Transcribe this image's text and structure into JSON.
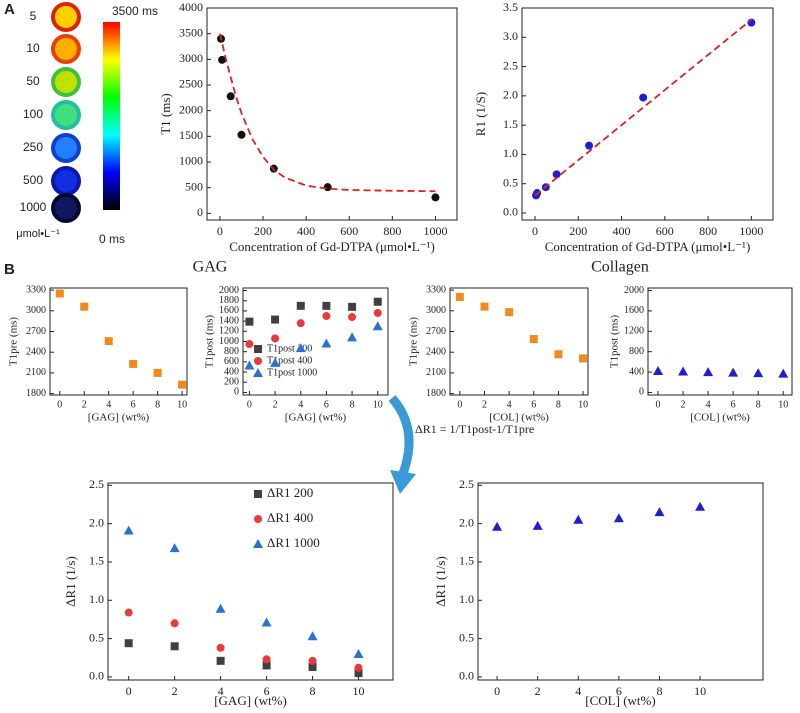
{
  "panel_labels": [
    "A",
    "B"
  ],
  "phantom": {
    "labels": [
      "5",
      "10",
      "50",
      "100",
      "250",
      "500",
      "1000"
    ],
    "unit": "μmol•L⁻¹",
    "colorbar_max": "3500 ms",
    "colorbar_min": "0 ms"
  },
  "group_titles": [
    "GAG",
    "Collagen"
  ],
  "annotation": "ΔR1 = 1/T1post-1/T1pre",
  "chart_data": [
    {
      "type": "scatter",
      "x_label": "Concentration of Gd-DTPA (μmol•L⁻¹)",
      "y_label": "T1 (ms)",
      "xlim": [
        -60,
        1100
      ],
      "ylim": [
        -130,
        4000
      ],
      "xticks": [
        0,
        200,
        400,
        600,
        800,
        1000
      ],
      "yticks": [
        0,
        500,
        1000,
        1500,
        2000,
        2500,
        3000,
        3500,
        4000
      ],
      "series": [
        {
          "color": "#111111",
          "marker": "circle",
          "x": [
            5,
            10,
            50,
            100,
            250,
            500,
            1000
          ],
          "values": [
            3400,
            2990,
            2280,
            1530,
            870,
            510,
            310
          ]
        },
        {
          "color": "#e02020",
          "style": "dashed",
          "x": [
            0,
            25,
            50,
            75,
            100,
            150,
            200,
            250,
            300,
            400,
            500,
            600,
            800,
            1000
          ],
          "values": [
            3500,
            3050,
            2650,
            2270,
            1950,
            1450,
            1100,
            850,
            700,
            540,
            480,
            455,
            440,
            430
          ]
        }
      ]
    },
    {
      "type": "scatter",
      "x_label": "Concentration of Gd-DTPA (μmol•L⁻¹)",
      "y_label": "R1 (1/S)",
      "xlim": [
        -60,
        1100
      ],
      "ylim": [
        -0.12,
        3.5
      ],
      "xticks": [
        0,
        200,
        400,
        600,
        800,
        1000
      ],
      "yticks": [
        {
          "value": 0,
          "label": "0.0"
        },
        0.5,
        {
          "value": 1,
          "label": "1.0"
        },
        1.5,
        {
          "value": 2,
          "label": "2.0"
        },
        2.5,
        {
          "value": 3,
          "label": "3.0"
        },
        3.5
      ],
      "series": [
        {
          "color": "#1f1fd0",
          "marker": "circle",
          "x": [
            5,
            10,
            50,
            100,
            250,
            500,
            1000
          ],
          "values": [
            0.3,
            0.34,
            0.44,
            0.66,
            1.15,
            1.97,
            3.25
          ]
        },
        {
          "color": "#e02020",
          "style": "dashed",
          "x": [
            0,
            1000
          ],
          "values": [
            0.3,
            3.3
          ]
        }
      ]
    },
    {
      "type": "scatter",
      "x_label": "[GAG] (wt%)",
      "y_label": "T1pre (ms)",
      "x": [
        0,
        2,
        4,
        6,
        8,
        10
      ],
      "xlim": [
        -0.8,
        10.4
      ],
      "ylim": [
        1780,
        3330
      ],
      "xticks": [
        0,
        2,
        4,
        6,
        8,
        10
      ],
      "yticks": [
        1800,
        2100,
        2400,
        2700,
        3000,
        3300
      ],
      "series": [
        {
          "color": "#f08a1c",
          "marker": "square",
          "values": [
            3250,
            3060,
            2560,
            2230,
            2100,
            1930
          ]
        }
      ]
    },
    {
      "type": "scatter",
      "x_label": "[GAG] (wt%)",
      "y_label": "T1post (ms)",
      "x": [
        0,
        2,
        4,
        6,
        8,
        10
      ],
      "xlim": [
        -0.5,
        10.8
      ],
      "ylim": [
        -50,
        2050
      ],
      "xticks": [
        0,
        2,
        4,
        6,
        8,
        10
      ],
      "yticks": [
        0,
        200,
        400,
        600,
        800,
        1000,
        1200,
        1400,
        1600,
        1800,
        2000
      ],
      "series": [
        {
          "name": "T1post 200",
          "color": "#404040",
          "marker": "square",
          "values": [
            1390,
            1430,
            1700,
            1700,
            1680,
            1780
          ]
        },
        {
          "name": "T1post 400",
          "color": "#e83a3a",
          "marker": "circle",
          "values": [
            950,
            1060,
            1360,
            1500,
            1480,
            1560
          ]
        },
        {
          "name": "T1post 1000",
          "color": "#2a72d0",
          "marker": "triangle",
          "values": [
            530,
            580,
            870,
            960,
            1080,
            1300
          ]
        }
      ]
    },
    {
      "type": "scatter",
      "x_label": "[COL] (wt%)",
      "y_label": "T1pre (ms)",
      "x": [
        0,
        2,
        4,
        6,
        8,
        10
      ],
      "xlim": [
        -0.8,
        10.4
      ],
      "ylim": [
        1780,
        3330
      ],
      "xticks": [
        0,
        2,
        4,
        6,
        8,
        10
      ],
      "yticks": [
        1800,
        2100,
        2400,
        2700,
        3000,
        3300
      ],
      "series": [
        {
          "color": "#f08a1c",
          "marker": "square",
          "values": [
            3200,
            3060,
            2980,
            2590,
            2370,
            2310
          ]
        }
      ]
    },
    {
      "type": "scatter",
      "x_label": "[COL] (wt%)",
      "y_label": "T1post (ms)",
      "x": [
        0,
        2,
        4,
        6,
        8,
        10
      ],
      "xlim": [
        -0.8,
        10.7
      ],
      "ylim": [
        -50,
        2050
      ],
      "xticks": [
        0,
        2,
        4,
        6,
        8,
        10
      ],
      "yticks": [
        0,
        400,
        800,
        1200,
        1600,
        2000
      ],
      "series": [
        {
          "color": "#1f1fd0",
          "marker": "triangle",
          "values": [
            420,
            410,
            400,
            390,
            380,
            370
          ]
        }
      ]
    },
    {
      "type": "scatter",
      "x_label": "[GAG] (wt%)",
      "y_label": "ΔR1 (1/s)",
      "x": [
        0,
        2,
        4,
        6,
        8,
        10
      ],
      "xlim": [
        -0.9,
        11.5
      ],
      "ylim": [
        -0.04,
        2.53
      ],
      "xticks": [
        0,
        2,
        4,
        6,
        8,
        10
      ],
      "yticks": [
        {
          "value": 0,
          "label": "0.0"
        },
        0.5,
        {
          "value": 1,
          "label": "1.0"
        },
        1.5,
        {
          "value": 2,
          "label": "2.0"
        },
        2.5
      ],
      "series": [
        {
          "name": "ΔR1 200",
          "color": "#404040",
          "marker": "square",
          "values": [
            0.44,
            0.4,
            0.21,
            0.15,
            0.13,
            0.05
          ]
        },
        {
          "name": "ΔR1 400",
          "color": "#e83a3a",
          "marker": "circle",
          "values": [
            0.84,
            0.7,
            0.38,
            0.23,
            0.21,
            0.12
          ]
        },
        {
          "name": "ΔR1 1000",
          "color": "#2a72d0",
          "marker": "triangle",
          "values": [
            1.91,
            1.68,
            0.89,
            0.71,
            0.53,
            0.3
          ]
        }
      ]
    },
    {
      "type": "scatter",
      "x_label": "[COL] (wt%)",
      "y_label": "ΔR1 (1/s)",
      "x": [
        0,
        2,
        4,
        6,
        8,
        10
      ],
      "xlim": [
        -0.94,
        13.1
      ],
      "ylim": [
        -0.04,
        2.53
      ],
      "xticks": [
        0,
        2,
        4,
        6,
        8,
        10
      ],
      "yticks": [
        {
          "value": 0,
          "label": "0.0"
        },
        0.5,
        {
          "value": 1,
          "label": "1.0"
        },
        1.5,
        {
          "value": 2,
          "label": "2.0"
        },
        2.5
      ],
      "series": [
        {
          "color": "#1f1fd0",
          "marker": "triangle",
          "values": [
            1.96,
            1.97,
            2.05,
            2.07,
            2.15,
            2.22
          ]
        }
      ]
    }
  ]
}
